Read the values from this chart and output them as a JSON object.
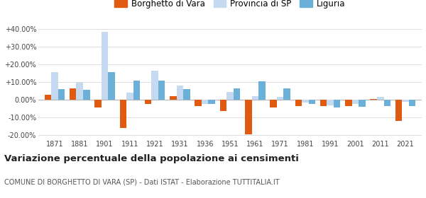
{
  "years": [
    1871,
    1881,
    1901,
    1911,
    1921,
    1931,
    1936,
    1951,
    1961,
    1971,
    1981,
    1991,
    2001,
    2011,
    2021
  ],
  "borghetto": [
    3.0,
    6.5,
    -4.5,
    -16.0,
    -2.5,
    2.0,
    -3.5,
    -6.5,
    -19.5,
    -4.5,
    -3.5,
    -3.5,
    -3.5,
    0.5,
    -12.0
  ],
  "provincia_sp": [
    15.5,
    9.5,
    38.5,
    4.0,
    16.5,
    8.0,
    -2.5,
    4.5,
    2.0,
    1.5,
    -1.5,
    -3.0,
    -2.5,
    1.5,
    -1.0
  ],
  "liguria": [
    6.0,
    5.5,
    15.5,
    11.0,
    11.0,
    6.0,
    -2.5,
    6.5,
    10.5,
    6.5,
    -2.5,
    -4.5,
    -4.0,
    -3.5,
    -3.5
  ],
  "color_borghetto": "#e05a10",
  "color_provincia": "#c5d9f0",
  "color_liguria": "#6ab0d8",
  "title": "Variazione percentuale della popolazione ai censimenti",
  "subtitle": "COMUNE DI BORGHETTO DI VARA (SP) - Dati ISTAT - Elaborazione TUTTITALIA.IT",
  "legend_labels": [
    "Borghetto di Vara",
    "Provincia di SP",
    "Liguria"
  ],
  "ylim": [
    -22,
    43
  ],
  "yticks": [
    -20,
    -10,
    0,
    10,
    20,
    30,
    40
  ],
  "ytick_labels": [
    "-20.00%",
    "-10.00%",
    "0.00%",
    "+10.00%",
    "+20.00%",
    "+30.00%",
    "+40.00%"
  ],
  "bar_width": 0.27,
  "background_color": "#ffffff",
  "grid_color": "#dddddd"
}
